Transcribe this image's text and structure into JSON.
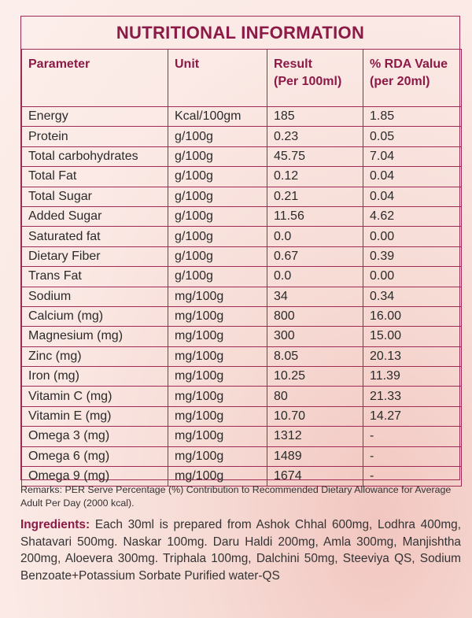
{
  "title": "NUTRITIONAL INFORMATION",
  "columns": [
    "Parameter",
    "Unit",
    "Result",
    "% RDA Value"
  ],
  "column_sub": [
    "",
    "",
    "(Per 100ml)",
    "(per 20ml)"
  ],
  "rows": [
    [
      "Energy",
      "Kcal/100gm",
      "185",
      "1.85"
    ],
    [
      "Protein",
      "g/100g",
      "0.23",
      "0.05"
    ],
    [
      "Total carbohydrates",
      "g/100g",
      "45.75",
      "7.04"
    ],
    [
      "Total Fat",
      "g/100g",
      "0.12",
      "0.04"
    ],
    [
      "Total Sugar",
      "g/100g",
      "0.21",
      "0.04"
    ],
    [
      "Added Sugar",
      "g/100g",
      "11.56",
      "4.62"
    ],
    [
      "Saturated fat",
      "g/100g",
      "0.0",
      "0.00"
    ],
    [
      "Dietary Fiber",
      "g/100g",
      "0.67",
      "0.39"
    ],
    [
      "Trans Fat",
      "g/100g",
      "0.0",
      "0.00"
    ],
    [
      "Sodium",
      "mg/100g",
      "34",
      "0.34"
    ],
    [
      "Calcium (mg)",
      "mg/100g",
      "800",
      "16.00"
    ],
    [
      "Magnesium (mg)",
      "mg/100g",
      "300",
      "15.00"
    ],
    [
      "Zinc (mg)",
      "mg/100g",
      "8.05",
      "20.13"
    ],
    [
      "Iron (mg)",
      "mg/100g",
      "10.25",
      "11.39"
    ],
    [
      "Vitamin C (mg)",
      "mg/100g",
      "80",
      "21.33"
    ],
    [
      "Vitamin E (mg)",
      "mg/100g",
      "10.70",
      "14.27"
    ],
    [
      "Omega 3 (mg)",
      "mg/100g",
      "1312",
      "-"
    ],
    [
      "Omega 6 (mg)",
      "mg/100g",
      "1489",
      "-"
    ],
    [
      "Omega 9 (mg)",
      "mg/100g",
      "1674",
      "-"
    ]
  ],
  "remarks": "Remarks: PER Serve Percentage (%) Contribution to Recommended Dietary Allowance for Average Adult Per Day (2000 kcal).",
  "ingredients_label": "Ingredients:",
  "ingredients_text": "Each 30ml is prepared from Ashok Chhal 600mg, Lodhra 400mg, Shatavari 500mg. Naskar 100mg. Daru Haldi 200mg, Amla 300mg, Manjishtha 200mg, Aloevera 300mg. Triphala 100mg, Dalchini 50mg, Steeviya QS, Sodium Benzoate+Potassium Sorbate Purified water-QS",
  "colors": {
    "accent": "#8b1a46",
    "border": "#9e2a55",
    "background": "#fbeae6"
  }
}
